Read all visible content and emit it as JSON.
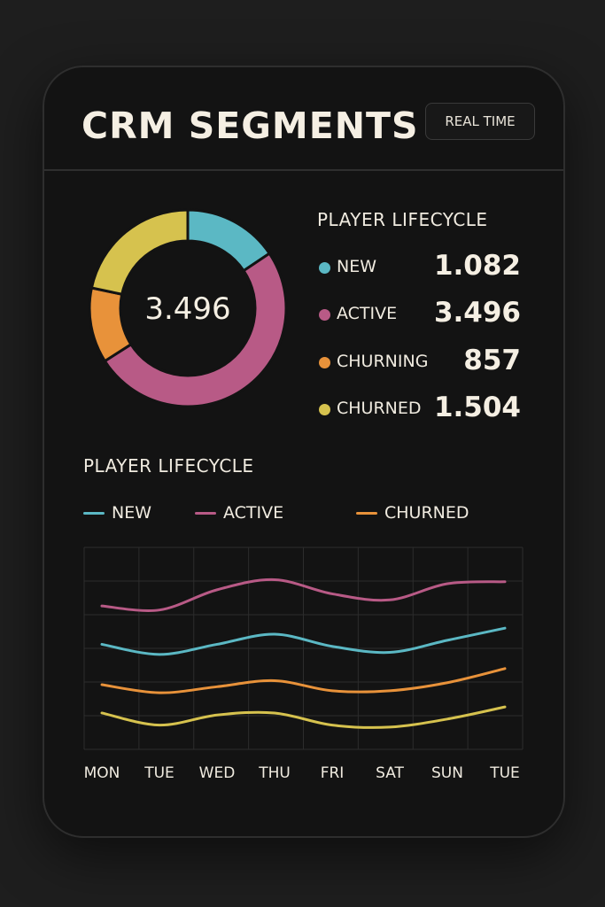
{
  "header": {
    "title": "CRM SEGMENTS",
    "realtime_label": "REAL TIME"
  },
  "colors": {
    "new": "#5bb8c4",
    "active": "#b85a86",
    "churning": "#e8923a",
    "churned": "#d6c24e",
    "grid": "#2c2c2c"
  },
  "donut": {
    "center_value": "3.496",
    "title": "PLAYER LIFECYCLE",
    "segments": [
      {
        "label": "NEW",
        "display": "1.082",
        "value": 1082,
        "color": "#5bb8c4"
      },
      {
        "label": "ACTIVE",
        "display": "3.496",
        "value": 3496,
        "color": "#b85a86"
      },
      {
        "label": "CHURNING",
        "display": "857",
        "value": 857,
        "color": "#e8923a"
      },
      {
        "label": "CHURNED",
        "display": "1.504",
        "value": 1504,
        "color": "#d6c24e"
      }
    ]
  },
  "line_section": {
    "title": "PLAYER LIFECYCLE",
    "legend": [
      {
        "label": "NEW",
        "color": "#5bb8c4"
      },
      {
        "label": "ACTIVE",
        "color": "#b85a86"
      },
      {
        "label": "CHURNED",
        "color": "#e8923a"
      }
    ]
  },
  "chart_data": [
    {
      "type": "pie",
      "title": "PLAYER LIFECYCLE",
      "categories": [
        "NEW",
        "ACTIVE",
        "CHURNING",
        "CHURNED"
      ],
      "values": [
        1082,
        3496,
        857,
        1504
      ],
      "center_label": "3.496",
      "legend_placement": "right"
    },
    {
      "type": "line",
      "title": "PLAYER LIFECYCLE",
      "categories": [
        "MON",
        "TUE",
        "WED",
        "THU",
        "FRI",
        "SAT",
        "SUN",
        "TUE"
      ],
      "ylim": [
        0,
        10
      ],
      "grid": true,
      "legend_placement": "top",
      "series": [
        {
          "name": "ACTIVE",
          "color": "#b85a86",
          "values": [
            7.1,
            6.9,
            7.9,
            8.4,
            7.7,
            7.4,
            8.2,
            8.3
          ]
        },
        {
          "name": "NEW",
          "color": "#5bb8c4",
          "values": [
            5.2,
            4.7,
            5.2,
            5.7,
            5.1,
            4.8,
            5.4,
            6.0
          ]
        },
        {
          "name": "CHURNED",
          "color": "#e8923a",
          "values": [
            3.2,
            2.8,
            3.1,
            3.4,
            2.9,
            2.9,
            3.3,
            4.0
          ]
        },
        {
          "color": "#d6c24e",
          "values": [
            1.8,
            1.2,
            1.7,
            1.8,
            1.2,
            1.1,
            1.5,
            2.1
          ]
        }
      ]
    }
  ]
}
